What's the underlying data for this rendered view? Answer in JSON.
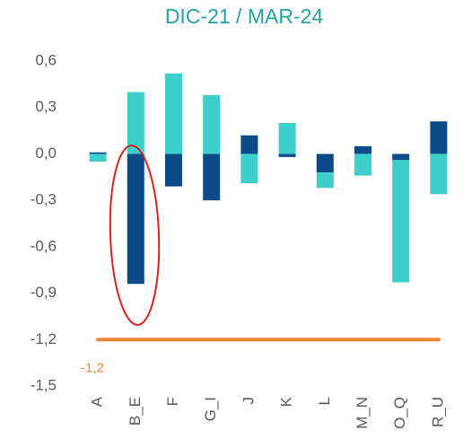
{
  "chart_data": {
    "type": "stacked_bar",
    "title": "DIC-21 / MAR-24",
    "title_color": "#2aa0a0",
    "categories": [
      "A",
      "B_E",
      "F",
      "G_I",
      "J",
      "K",
      "L",
      "M_N",
      "O_Q",
      "R_U"
    ],
    "series": [
      {
        "color": "#0d4a88",
        "values": [
          0.01,
          -0.84,
          -0.21,
          -0.3,
          0.12,
          -0.02,
          -0.12,
          0.05,
          -0.04,
          0.21
        ]
      },
      {
        "color": "#3ccfcc",
        "values": [
          -0.05,
          0.4,
          0.52,
          0.38,
          -0.19,
          0.2,
          -0.1,
          -0.14,
          -0.79,
          -0.26
        ]
      }
    ],
    "ylim": [
      -1.5,
      0.6
    ],
    "yticks": [
      {
        "value": 0.6,
        "label": "0,6"
      },
      {
        "value": 0.3,
        "label": "0,3"
      },
      {
        "value": 0.0,
        "label": "0,0"
      },
      {
        "value": -0.3,
        "label": "-0,3"
      },
      {
        "value": -0.6,
        "label": "-0,6"
      },
      {
        "value": -0.9,
        "label": "-0,9"
      },
      {
        "value": -1.2,
        "label": "-1,2"
      },
      {
        "value": -1.5,
        "label": "-1,5"
      }
    ],
    "reference_line": {
      "value": -1.2,
      "label": "-1,2",
      "color": "#f0883a"
    }
  }
}
